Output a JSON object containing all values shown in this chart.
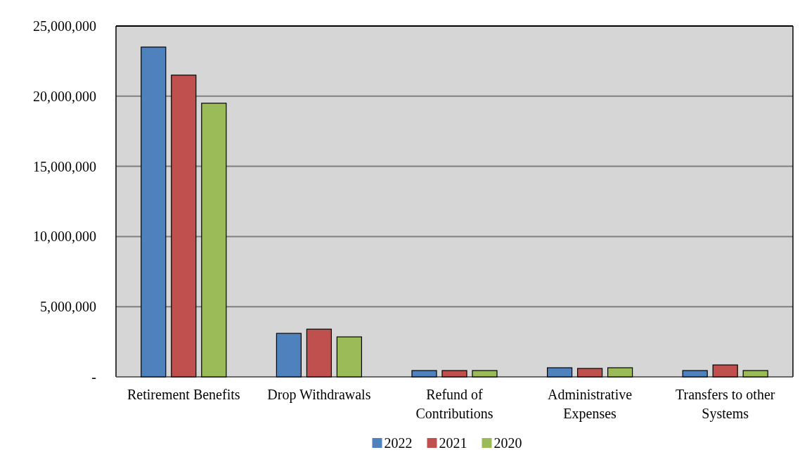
{
  "chart_data": {
    "type": "bar",
    "categories": [
      "Retirement Benefits",
      "Drop Withdrawals",
      "Refund of Contributions",
      "Administrative Expenses",
      "Transfers to other Systems"
    ],
    "series": [
      {
        "name": "2022",
        "color": "#4f81bd",
        "values": [
          23500000,
          3100000,
          450000,
          650000,
          450000
        ]
      },
      {
        "name": "2021",
        "color": "#c0504d",
        "values": [
          21500000,
          3400000,
          450000,
          600000,
          850000
        ]
      },
      {
        "name": "2020",
        "color": "#9bbb59",
        "values": [
          19500000,
          2850000,
          450000,
          650000,
          450000
        ]
      }
    ],
    "ylim": [
      0,
      25000000
    ],
    "yticks": [
      {
        "value": 0,
        "label": "-"
      },
      {
        "value": 5000000,
        "label": "5,000,000"
      },
      {
        "value": 10000000,
        "label": "10,000,000"
      },
      {
        "value": 15000000,
        "label": "15,000,000"
      },
      {
        "value": 20000000,
        "label": "20,000,000"
      },
      {
        "value": 25000000,
        "label": "25,000,000"
      }
    ],
    "grid": "y",
    "legend": "bottom"
  }
}
